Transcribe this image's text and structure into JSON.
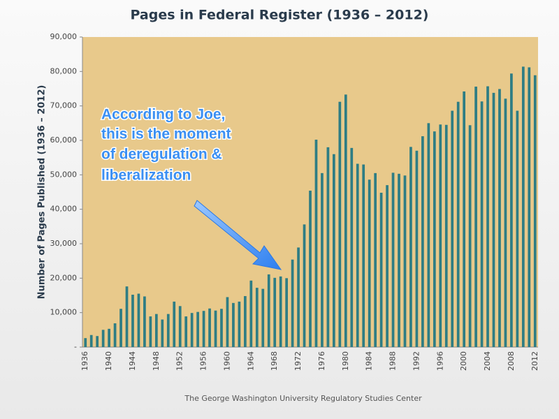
{
  "chart_data": {
    "type": "bar",
    "title": "Pages in Federal Register (1936 – 2012)",
    "y_label": "Number of Pages Published (1936 – 2012)",
    "source": "The George Washington University Regulatory Studies Center",
    "annotation": [
      "According to Joe,",
      "this is the moment",
      "of deregulation &",
      "liberalization"
    ],
    "categories": [
      "1936",
      null,
      null,
      null,
      "1940",
      null,
      null,
      null,
      "1944",
      null,
      null,
      null,
      "1948",
      null,
      null,
      null,
      "1952",
      null,
      null,
      null,
      "1956",
      null,
      null,
      null,
      "1960",
      null,
      null,
      null,
      "1964",
      null,
      null,
      null,
      "1968",
      null,
      null,
      null,
      "1972",
      null,
      null,
      null,
      "1976",
      null,
      null,
      null,
      "1980",
      null,
      null,
      null,
      "1984",
      null,
      null,
      null,
      "1988",
      null,
      null,
      null,
      "1992",
      null,
      null,
      null,
      "1996",
      null,
      null,
      null,
      "2000",
      null,
      null,
      null,
      "2004",
      null,
      null,
      null,
      "2008",
      null,
      null,
      null,
      "2012"
    ],
    "values": [
      2600,
      3500,
      3200,
      5000,
      5300,
      6900,
      11100,
      17600,
      15200,
      15500,
      14700,
      8900,
      9600,
      8000,
      9600,
      13200,
      11900,
      8900,
      9900,
      10200,
      10500,
      11200,
      10600,
      11100,
      14500,
      12800,
      13200,
      14800,
      19300,
      17200,
      16900,
      21100,
      20100,
      20500,
      20000,
      25400,
      28900,
      35600,
      45400,
      60200,
      50500,
      58000,
      56000,
      71200,
      73300,
      57800,
      53200,
      53000,
      48600,
      50500,
      44800,
      47000,
      50600,
      50300,
      49800,
      58100,
      57000,
      61200,
      65000,
      62600,
      64600,
      64500,
      68600,
      71200,
      74200,
      64400,
      75600,
      71300,
      75700,
      73800,
      74900,
      72100,
      79400,
      68600,
      81400,
      81200,
      78900
    ],
    "color": "#2e7d84",
    "ylim": [
      0,
      90000
    ],
    "yticks": [
      {
        "value": 0,
        "label": "-"
      },
      {
        "value": 10000,
        "label": "10,000"
      },
      {
        "value": 20000,
        "label": "20,000"
      },
      {
        "value": 30000,
        "label": "30,000"
      },
      {
        "value": 40000,
        "label": "40,000"
      },
      {
        "value": 50000,
        "label": "50,000"
      },
      {
        "value": 60000,
        "label": "60,000"
      },
      {
        "value": 70000,
        "label": "70,000"
      },
      {
        "value": 80000,
        "label": "80,000"
      },
      {
        "value": 90000,
        "label": "90,000"
      }
    ],
    "grid": false
  }
}
